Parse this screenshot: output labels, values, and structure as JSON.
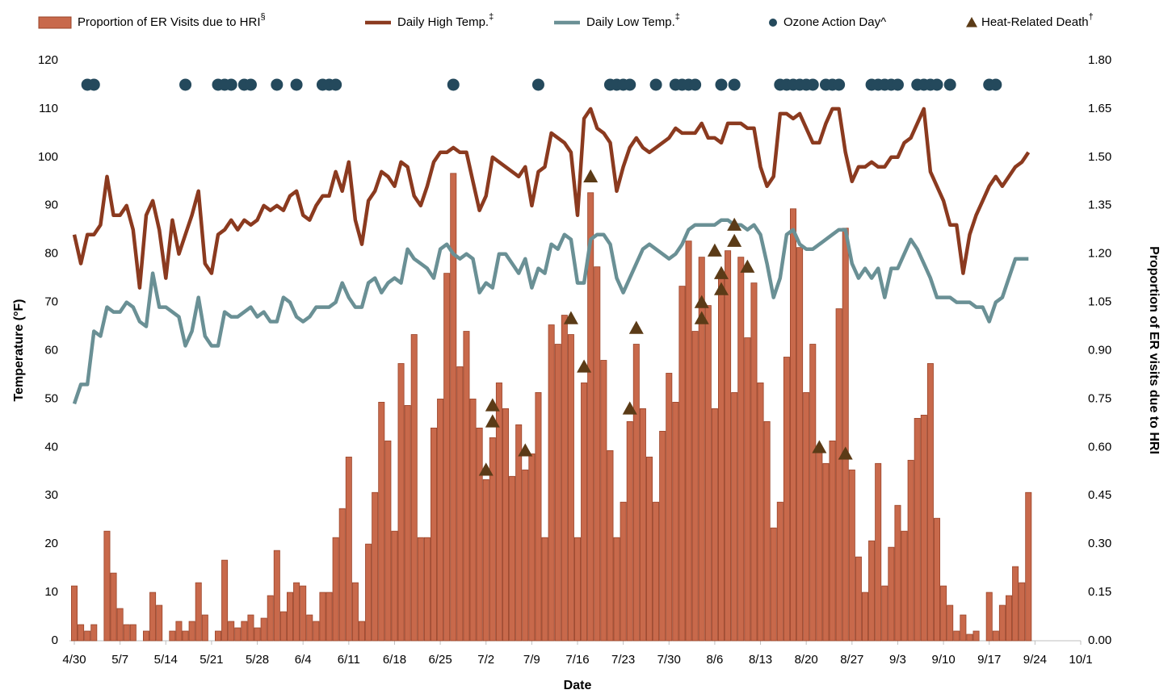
{
  "chart_data": {
    "type": "bar",
    "x_label": "Date",
    "y_label": "Temperature (°F)",
    "y2_label": "Proportion of ER visits due to HRI",
    "xlim": [
      0,
      154
    ],
    "xticks": [
      {
        "value": 0,
        "label": "4/30"
      },
      {
        "value": 7,
        "label": "5/7"
      },
      {
        "value": 14,
        "label": "5/14"
      },
      {
        "value": 21,
        "label": "5/21"
      },
      {
        "value": 28,
        "label": "5/28"
      },
      {
        "value": 35,
        "label": "6/4"
      },
      {
        "value": 42,
        "label": "6/11"
      },
      {
        "value": 49,
        "label": "6/18"
      },
      {
        "value": 56,
        "label": "6/25"
      },
      {
        "value": 63,
        "label": "7/2"
      },
      {
        "value": 70,
        "label": "7/9"
      },
      {
        "value": 77,
        "label": "7/16"
      },
      {
        "value": 84,
        "label": "7/23"
      },
      {
        "value": 91,
        "label": "7/30"
      },
      {
        "value": 98,
        "label": "8/6"
      },
      {
        "value": 105,
        "label": "8/13"
      },
      {
        "value": 112,
        "label": "8/20"
      },
      {
        "value": 119,
        "label": "8/27"
      },
      {
        "value": 126,
        "label": "9/3"
      },
      {
        "value": 133,
        "label": "9/10"
      },
      {
        "value": 140,
        "label": "9/17"
      },
      {
        "value": 147,
        "label": "9/24"
      },
      {
        "value": 154,
        "label": "10/1"
      }
    ],
    "ylim": [
      0,
      120
    ],
    "yticks": [
      0,
      10,
      20,
      30,
      40,
      50,
      60,
      70,
      80,
      90,
      100,
      110,
      120
    ],
    "y2lim": [
      0,
      1.8
    ],
    "y2ticks": [
      {
        "value": 0,
        "label": "0.00"
      },
      {
        "value": 0.15,
        "label": "0.15"
      },
      {
        "value": 0.3,
        "label": "0.30"
      },
      {
        "value": 0.45,
        "label": "0.45"
      },
      {
        "value": 0.6,
        "label": "0.60"
      },
      {
        "value": 0.75,
        "label": "0.75"
      },
      {
        "value": 0.9,
        "label": "0.90"
      },
      {
        "value": 1.05,
        "label": "1.05"
      },
      {
        "value": 1.2,
        "label": "1.20"
      },
      {
        "value": 1.35,
        "label": "1.35"
      },
      {
        "value": 1.5,
        "label": "1.50"
      },
      {
        "value": 1.65,
        "label": "1.65"
      },
      {
        "value": 1.8,
        "label": "1.80"
      }
    ],
    "grid": false,
    "legend": "top",
    "x": [
      0,
      1,
      2,
      3,
      4,
      5,
      6,
      7,
      8,
      9,
      10,
      11,
      12,
      13,
      14,
      15,
      16,
      17,
      18,
      19,
      20,
      21,
      22,
      23,
      24,
      25,
      26,
      27,
      28,
      29,
      30,
      31,
      32,
      33,
      34,
      35,
      36,
      37,
      38,
      39,
      40,
      41,
      42,
      43,
      44,
      45,
      46,
      47,
      48,
      49,
      50,
      51,
      52,
      53,
      54,
      55,
      56,
      57,
      58,
      59,
      60,
      61,
      62,
      63,
      64,
      65,
      66,
      67,
      68,
      69,
      70,
      71,
      72,
      73,
      74,
      75,
      76,
      77,
      78,
      79,
      80,
      81,
      82,
      83,
      84,
      85,
      86,
      87,
      88,
      89,
      90,
      91,
      92,
      93,
      94,
      95,
      96,
      97,
      98,
      99,
      100,
      101,
      102,
      103,
      104,
      105,
      106,
      107,
      108,
      109,
      110,
      111,
      112,
      113,
      114,
      115,
      116,
      117,
      118,
      119,
      120,
      121,
      122,
      123,
      124,
      125,
      126,
      127,
      128,
      129,
      130,
      131,
      132,
      133,
      134,
      135,
      136,
      137,
      138,
      139,
      140,
      141,
      142,
      143,
      144,
      145,
      146
    ],
    "series": [
      {
        "name": "Proportion of ER Visits due to HRI",
        "note": "§",
        "type": "bar",
        "axis": "y2",
        "color": "#c8694b",
        "edge": "#9a4429",
        "values": [
          0.17,
          0.05,
          0.03,
          0.05,
          0,
          0.34,
          0.21,
          0.1,
          0.05,
          0.05,
          0,
          0.03,
          0.15,
          0.11,
          0,
          0.03,
          0.06,
          0.03,
          0.06,
          0.18,
          0.08,
          0,
          0.03,
          0.25,
          0.06,
          0.04,
          0.06,
          0.08,
          0.04,
          0.07,
          0.14,
          0.28,
          0.09,
          0.15,
          0.18,
          0.17,
          0.08,
          0.06,
          0.15,
          0.15,
          0.32,
          0.41,
          0.57,
          0.18,
          0.06,
          0.3,
          0.46,
          0.74,
          0.62,
          0.34,
          0.86,
          0.73,
          0.95,
          0.32,
          0.32,
          0.66,
          0.75,
          1.14,
          1.45,
          0.85,
          0.96,
          0.75,
          0.66,
          0.5,
          0.63,
          0.8,
          0.72,
          0.51,
          0.67,
          0.53,
          0.58,
          0.77,
          0.32,
          0.98,
          0.92,
          1.01,
          0.95,
          0.32,
          0.8,
          1.39,
          1.16,
          0.87,
          0.59,
          0.32,
          0.43,
          0.68,
          0.92,
          0.72,
          0.57,
          0.43,
          0.65,
          0.83,
          0.74,
          1.1,
          1.24,
          0.96,
          1.19,
          1.04,
          0.72,
          1.13,
          1.21,
          0.77,
          1.19,
          0.94,
          1.11,
          0.8,
          0.68,
          0.35,
          0.43,
          0.88,
          1.34,
          1.22,
          0.77,
          0.92,
          0.6,
          0.55,
          0.62,
          1.03,
          1.28,
          0.53,
          0.26,
          0.15,
          0.31,
          0.55,
          0.17,
          0.29,
          0.42,
          0.34,
          0.56,
          0.69,
          0.7,
          0.86,
          0.38,
          0.17,
          0.11,
          0.03,
          0.08,
          0.02,
          0.03,
          0,
          0.15,
          0.03,
          0.11,
          0.14,
          0.23,
          0.18,
          0.46
        ]
      },
      {
        "name": "Daily High Temp.",
        "note": "‡",
        "type": "line",
        "color": "#8b3a1f",
        "values": [
          84,
          78,
          84,
          84,
          86,
          96,
          88,
          88,
          90,
          85,
          73,
          88,
          91,
          85,
          75,
          87,
          80,
          84,
          88,
          93,
          78,
          76,
          84,
          85,
          87,
          85,
          87,
          86,
          87,
          90,
          89,
          90,
          89,
          92,
          93,
          88,
          87,
          90,
          92,
          92,
          97,
          93,
          99,
          87,
          82,
          91,
          93,
          97,
          96,
          94,
          99,
          98,
          92,
          90,
          94,
          99,
          101,
          101,
          102,
          101,
          101,
          95,
          89,
          92,
          100,
          99,
          98,
          97,
          96,
          98,
          90,
          97,
          98,
          105,
          104,
          103,
          101,
          88,
          108,
          110,
          106,
          105,
          103,
          93,
          98,
          102,
          104,
          102,
          101,
          102,
          103,
          104,
          106,
          105,
          105,
          105,
          107,
          104,
          104,
          103,
          107,
          107,
          107,
          106,
          106,
          98,
          94,
          96,
          109,
          109,
          108,
          109,
          106,
          103,
          103,
          107,
          110,
          110,
          101,
          95,
          98,
          98,
          99,
          98,
          98,
          100,
          100,
          103,
          104,
          107,
          110,
          97,
          94,
          91,
          86,
          86,
          76,
          84,
          88,
          91,
          94,
          96,
          94,
          96,
          98,
          99,
          101
        ]
      },
      {
        "name": "Daily Low Temp.",
        "note": "‡",
        "type": "line",
        "color": "#6a9095",
        "values": [
          49,
          53,
          53,
          64,
          63,
          69,
          68,
          68,
          70,
          69,
          66,
          65,
          76,
          69,
          69,
          68,
          67,
          61,
          64,
          71,
          63,
          61,
          61,
          68,
          67,
          67,
          68,
          69,
          67,
          68,
          66,
          66,
          71,
          70,
          67,
          66,
          67,
          69,
          69,
          69,
          70,
          74,
          71,
          69,
          69,
          74,
          75,
          72,
          74,
          75,
          74,
          81,
          79,
          78,
          77,
          75,
          81,
          82,
          80,
          79,
          80,
          79,
          72,
          74,
          73,
          80,
          80,
          78,
          76,
          79,
          73,
          77,
          76,
          82,
          81,
          84,
          83,
          74,
          74,
          83,
          84,
          84,
          82,
          75,
          72,
          75,
          78,
          81,
          82,
          81,
          80,
          79,
          80,
          82,
          85,
          86,
          86,
          86,
          86,
          87,
          87,
          86,
          86,
          85,
          86,
          84,
          78,
          71,
          75,
          84,
          85,
          82,
          81,
          81,
          82,
          83,
          84,
          85,
          85,
          78,
          75,
          77,
          75,
          77,
          71,
          77,
          77,
          80,
          83,
          81,
          78,
          75,
          71,
          71,
          71,
          70,
          70,
          70,
          69,
          69,
          66,
          70,
          71,
          75,
          79,
          79,
          79
        ]
      },
      {
        "name": "Ozone Action Day^",
        "type": "scatter",
        "marker": "circle",
        "color": "#24495c",
        "x": [
          2,
          3,
          17,
          22,
          23,
          24,
          26,
          27,
          31,
          34,
          38,
          39,
          40,
          58,
          71,
          82,
          83,
          84,
          85,
          89,
          92,
          93,
          94,
          95,
          99,
          101,
          108,
          109,
          110,
          111,
          112,
          113,
          115,
          116,
          117,
          122,
          123,
          124,
          125,
          126,
          129,
          130,
          131,
          132,
          134,
          140,
          141
        ],
        "values": [
          115,
          115,
          115,
          115,
          115,
          115,
          115,
          115,
          115,
          115,
          115,
          115,
          115,
          115,
          115,
          115,
          115,
          115,
          115,
          115,
          115,
          115,
          115,
          115,
          115,
          115,
          115,
          115,
          115,
          115,
          115,
          115,
          115,
          115,
          115,
          115,
          115,
          115,
          115,
          115,
          115,
          115,
          115,
          115,
          115,
          115,
          115
        ]
      },
      {
        "name": "Heat-Related Death",
        "note": "†",
        "type": "scatter",
        "marker": "triangle",
        "axis": "y2",
        "color": "#5b3b17",
        "x": [
          63,
          64,
          64,
          69,
          76,
          78,
          79,
          85,
          86,
          96,
          96,
          98,
          99,
          99,
          101,
          101,
          103,
          114,
          118
        ],
        "values": [
          0.53,
          0.73,
          0.68,
          0.59,
          1.0,
          0.85,
          1.44,
          0.72,
          0.97,
          1.05,
          1.0,
          1.21,
          1.14,
          1.09,
          1.29,
          1.24,
          1.16,
          0.6,
          0.58
        ]
      }
    ]
  }
}
